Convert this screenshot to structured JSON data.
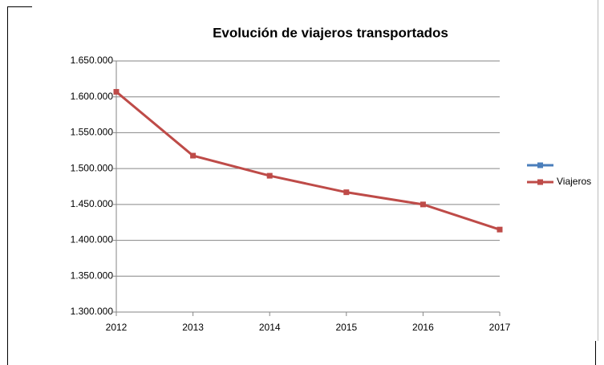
{
  "chart_data": {
    "type": "line",
    "title": "Evolución de viajeros transportados",
    "categories": [
      "2012",
      "2013",
      "2014",
      "2015",
      "2016",
      "2017"
    ],
    "series": [
      {
        "color": "#4a7ebb",
        "values": [
          null,
          null,
          null,
          null,
          null,
          null
        ]
      },
      {
        "name": "Viajeros",
        "color": "#be4b48",
        "values": [
          1607000,
          1518000,
          1490000,
          1467000,
          1450000,
          1415000
        ]
      }
    ],
    "ylim": [
      1300000,
      1650000
    ],
    "yticks": [
      {
        "value": 1300000,
        "label": "1.300.000"
      },
      {
        "value": 1350000,
        "label": "1.350.000"
      },
      {
        "value": 1400000,
        "label": "1.400.000"
      },
      {
        "value": 1450000,
        "label": "1.450.000"
      },
      {
        "value": 1500000,
        "label": "1.500.000"
      },
      {
        "value": 1550000,
        "label": "1.550.000"
      },
      {
        "value": 1600000,
        "label": "1.600.000"
      },
      {
        "value": 1650000,
        "label": "1.650.000"
      }
    ],
    "grid": true,
    "legend": "right"
  }
}
